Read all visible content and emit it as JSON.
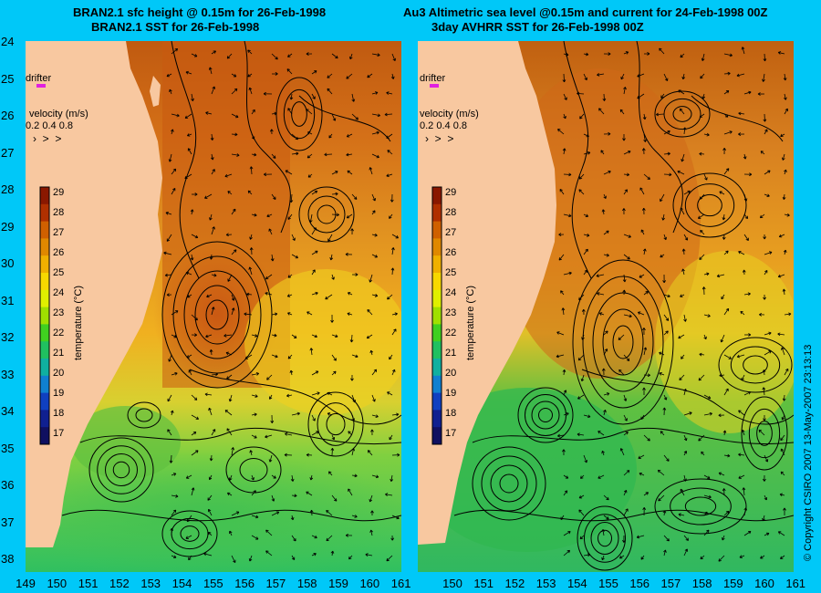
{
  "left": {
    "title_line1": "BRAN2.1 sfc height @ 0.15m for 26-Feb-1998",
    "title_line2": "BRAN2.1 SST for 26-Feb-1998"
  },
  "right": {
    "title_line1": "Au3 Altimetric sea level  @0.15m and current for 24-Feb-1998 00Z",
    "title_line2": "3day AVHRR SST for 26-Feb-1998 00Z"
  },
  "lat_ticks": [
    "24",
    "25",
    "26",
    "27",
    "28",
    "29",
    "30",
    "31",
    "32",
    "33",
    "34",
    "35",
    "36",
    "37",
    "38"
  ],
  "lon_ticks": [
    "149",
    "150",
    "151",
    "152",
    "153",
    "154",
    "155",
    "156",
    "157",
    "158",
    "159",
    "160",
    "161"
  ],
  "lon_ticks_right": [
    "150",
    "151",
    "152",
    "153",
    "154",
    "155",
    "156",
    "157",
    "158",
    "159",
    "160",
    "161"
  ],
  "drifter_label": "drifter",
  "velocity_label": "velocity (m/s)",
  "velocity_values": "0.2 0.4 0.8",
  "colorbar": {
    "label": "temperature (°C)",
    "ticks": [
      "29",
      "28",
      "27",
      "26",
      "25",
      "24",
      "23",
      "22",
      "21",
      "20",
      "19",
      "18",
      "17"
    ],
    "colors": [
      "#8a1800",
      "#b03000",
      "#d06000",
      "#e08800",
      "#f0b000",
      "#f8d800",
      "#e0f000",
      "#a0e000",
      "#40d020",
      "#20c060",
      "#10b0a0",
      "#1080d0",
      "#1040c0",
      "#102090",
      "#101060"
    ]
  },
  "copyright": "© Copyright CSIRO 2007   13-May-2007 23:13:13",
  "colors": {
    "background": "#00c8f8",
    "land": "#f8c8a0",
    "drifter": "#e020e0"
  }
}
